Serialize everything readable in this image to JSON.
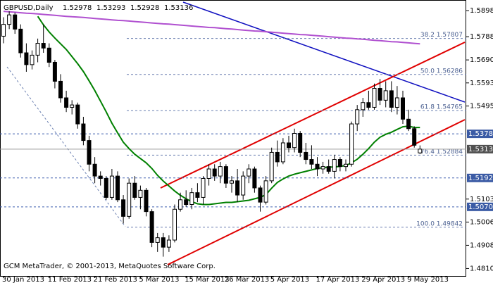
{
  "chart_data": {
    "type": "candlestick",
    "title": "GBPUSD,Daily",
    "header_values": [
      1.52978,
      1.53293,
      1.52928,
      1.53136
    ],
    "footer": "GCM MetaTrader, © 2001-2013, MetaQuotes Software Corp.",
    "categories": [
      "30 Jan 2013",
      null,
      null,
      null,
      null,
      null,
      null,
      null,
      "11 Feb 2013",
      null,
      null,
      null,
      null,
      null,
      null,
      null,
      "21 Feb 2013",
      null,
      null,
      null,
      null,
      null,
      null,
      null,
      "5 Mar 2013",
      null,
      null,
      null,
      null,
      null,
      null,
      null,
      "15 Mar 2013",
      null,
      null,
      null,
      null,
      null,
      null,
      "26 Mar 2013",
      null,
      null,
      null,
      null,
      null,
      null,
      null,
      "5 Apr 2013",
      null,
      null,
      null,
      null,
      null,
      null,
      null,
      "17 Apr 2013",
      null,
      null,
      null,
      null,
      null,
      null,
      null,
      "29 Apr 2013",
      null,
      null,
      null,
      null,
      null,
      null,
      null,
      "9 May 2013",
      null,
      null
    ],
    "open": [
      1.579,
      1.584,
      1.588,
      1.582,
      1.572,
      1.567,
      1.571,
      1.576,
      1.574,
      1.568,
      1.56,
      1.553,
      1.549,
      1.55,
      1.542,
      1.535,
      1.525,
      1.52,
      1.519,
      1.511,
      1.52,
      1.51,
      1.503,
      1.517,
      1.511,
      1.514,
      1.505,
      1.492,
      1.494,
      1.49,
      1.493,
      1.506,
      1.51,
      1.508,
      1.513,
      1.511,
      1.519,
      1.523,
      1.52,
      1.524,
      1.517,
      1.518,
      1.512,
      1.52,
      1.523,
      1.515,
      1.509,
      1.518,
      1.53,
      1.526,
      1.534,
      1.532,
      1.538,
      1.53,
      1.527,
      1.525,
      1.523,
      1.524,
      1.522,
      1.527,
      1.524,
      1.525,
      1.542,
      1.548,
      1.551,
      1.549,
      1.557,
      1.552,
      1.556,
      1.549,
      1.553,
      1.544,
      1.54,
      1.52978
    ],
    "high": [
      1.587,
      1.5895,
      1.589,
      1.584,
      1.576,
      1.573,
      1.578,
      1.584,
      1.576,
      1.569,
      1.563,
      1.556,
      1.552,
      1.551,
      1.545,
      1.537,
      1.528,
      1.522,
      1.52,
      1.523,
      1.522,
      1.512,
      1.519,
      1.52,
      1.516,
      1.515,
      1.506,
      1.496,
      1.496,
      1.495,
      1.508,
      1.513,
      1.514,
      1.515,
      1.517,
      1.52,
      1.525,
      1.525,
      1.526,
      1.525,
      1.52,
      1.523,
      1.522,
      1.525,
      1.524,
      1.516,
      1.52,
      1.532,
      1.535,
      1.536,
      1.537,
      1.54,
      1.539,
      1.534,
      1.533,
      1.528,
      1.526,
      1.527,
      1.529,
      1.528,
      1.527,
      1.543,
      1.55,
      1.553,
      1.556,
      1.559,
      1.561,
      1.56,
      1.56,
      1.558,
      1.556,
      1.548,
      1.541,
      1.53293
    ],
    "low": [
      1.576,
      1.582,
      1.58,
      1.57,
      1.564,
      1.565,
      1.568,
      1.572,
      1.566,
      1.557,
      1.551,
      1.547,
      1.546,
      1.54,
      1.533,
      1.522,
      1.517,
      1.516,
      1.51,
      1.51,
      1.509,
      1.5,
      1.502,
      1.51,
      1.506,
      1.503,
      1.49,
      1.488,
      1.486,
      1.488,
      1.492,
      1.505,
      1.507,
      1.506,
      1.509,
      1.508,
      1.516,
      1.518,
      1.517,
      1.515,
      1.513,
      1.509,
      1.51,
      1.517,
      1.513,
      1.505,
      1.508,
      1.517,
      1.524,
      1.525,
      1.53,
      1.53,
      1.528,
      1.525,
      1.523,
      1.52,
      1.521,
      1.521,
      1.519,
      1.522,
      1.522,
      1.524,
      1.539,
      1.545,
      1.548,
      1.548,
      1.55,
      1.549,
      1.547,
      1.546,
      1.542,
      1.539,
      1.532,
      1.52928
    ],
    "close": [
      1.584,
      1.588,
      1.582,
      1.572,
      1.567,
      1.571,
      1.576,
      1.574,
      1.568,
      1.56,
      1.553,
      1.549,
      1.55,
      1.542,
      1.535,
      1.525,
      1.52,
      1.519,
      1.511,
      1.52,
      1.51,
      1.503,
      1.517,
      1.511,
      1.514,
      1.505,
      1.492,
      1.494,
      1.49,
      1.493,
      1.506,
      1.51,
      1.508,
      1.513,
      1.511,
      1.519,
      1.523,
      1.52,
      1.524,
      1.517,
      1.518,
      1.512,
      1.52,
      1.523,
      1.515,
      1.509,
      1.518,
      1.53,
      1.526,
      1.534,
      1.532,
      1.538,
      1.53,
      1.527,
      1.525,
      1.523,
      1.524,
      1.522,
      1.527,
      1.524,
      1.525,
      1.542,
      1.548,
      1.551,
      1.549,
      1.557,
      1.552,
      1.556,
      1.549,
      1.553,
      1.544,
      1.54,
      1.533,
      1.53136
    ],
    "lines": [
      {
        "color": "#008000",
        "values": [
          null,
          null,
          null,
          null,
          null,
          null,
          1.5874,
          1.5838,
          1.5808,
          1.5782,
          1.5758,
          1.5734,
          1.5704,
          1.5674,
          1.5641,
          1.5602,
          1.5561,
          1.5516,
          1.5471,
          1.5423,
          1.5382,
          1.5343,
          1.5316,
          1.5292,
          1.5274,
          1.5256,
          1.5232,
          1.5203,
          1.5179,
          1.5158,
          1.5137,
          1.5119,
          1.5104,
          1.5092,
          1.5083,
          1.508,
          1.508,
          1.5083,
          1.5086,
          1.5089,
          1.5089,
          1.5092,
          1.5095,
          1.5098,
          1.5104,
          1.511,
          1.5122,
          1.5149,
          1.5173,
          1.5188,
          1.52,
          1.5208,
          1.5214,
          1.522,
          1.5226,
          1.5232,
          1.5235,
          1.5238,
          1.5238,
          1.5241,
          1.5244,
          1.5256,
          1.5271,
          1.5292,
          1.5316,
          1.5343,
          1.5364,
          1.5376,
          1.5385,
          1.5397,
          1.5408,
          1.5411,
          1.5405,
          1.5405
        ]
      },
      {
        "color": "#b050d0",
        "values": [
          1.5895,
          1.5893,
          1.5891,
          1.5889,
          1.5887,
          1.5886,
          1.5884,
          1.5882,
          1.588,
          1.5878,
          1.5876,
          1.5874,
          1.5872,
          1.5871,
          1.5869,
          1.5867,
          1.5865,
          1.5863,
          1.5861,
          1.5859,
          1.5857,
          1.5856,
          1.5854,
          1.5852,
          1.585,
          1.5848,
          1.5846,
          1.5844,
          1.5842,
          1.5841,
          1.5839,
          1.5837,
          1.5835,
          1.5833,
          1.5831,
          1.5829,
          1.5827,
          1.5826,
          1.5824,
          1.5822,
          1.582,
          1.5818,
          1.5816,
          1.5814,
          1.5812,
          1.5811,
          1.5809,
          1.5807,
          1.5805,
          1.5803,
          1.5801,
          1.5799,
          1.5797,
          1.5796,
          1.5794,
          1.5792,
          1.579,
          1.5788,
          1.5786,
          1.5784,
          1.5782,
          1.5781,
          1.5779,
          1.5777,
          1.5775,
          1.5773,
          1.5771,
          1.5769,
          1.5767,
          1.5766,
          1.5764,
          1.5762,
          1.576,
          1.5758
        ]
      }
    ],
    "fibo_levels": [
      {
        "text": "38.2 1.57807",
        "price": 1.57807
      },
      {
        "text": "50.0 1.56286",
        "price": 1.56286
      },
      {
        "text": "61.8 1.54765",
        "price": 1.54765
      },
      {
        "text": "76.4 1.52884",
        "price": 1.52884
      },
      {
        "text": "100.0 1.49842",
        "price": 1.49842
      }
    ],
    "levels": [
      {
        "value": 1.53782,
        "label": "1.53782"
      },
      {
        "value": 1.5192,
        "label": "1.51920"
      },
      {
        "value": 1.50701,
        "label": "1.50701"
      }
    ],
    "current_price": 1.53136,
    "ylim": [
      1.47786,
      1.59428
    ],
    "yticks": [
      {
        "value": 1.5898,
        "label": "1.58980"
      },
      {
        "value": 1.5788,
        "label": "1.57880"
      },
      {
        "value": 1.569,
        "label": "1.56900"
      },
      {
        "value": 1.5593,
        "label": "1.55930"
      },
      1.54955,
      {
        "value": 1.5103,
        "label": "1.51030"
      },
      {
        "value": 1.5006,
        "label": "1.50060"
      },
      {
        "value": 1.4908,
        "label": "1.49080"
      },
      {
        "value": 1.481,
        "label": "1.48100"
      }
    ]
  }
}
